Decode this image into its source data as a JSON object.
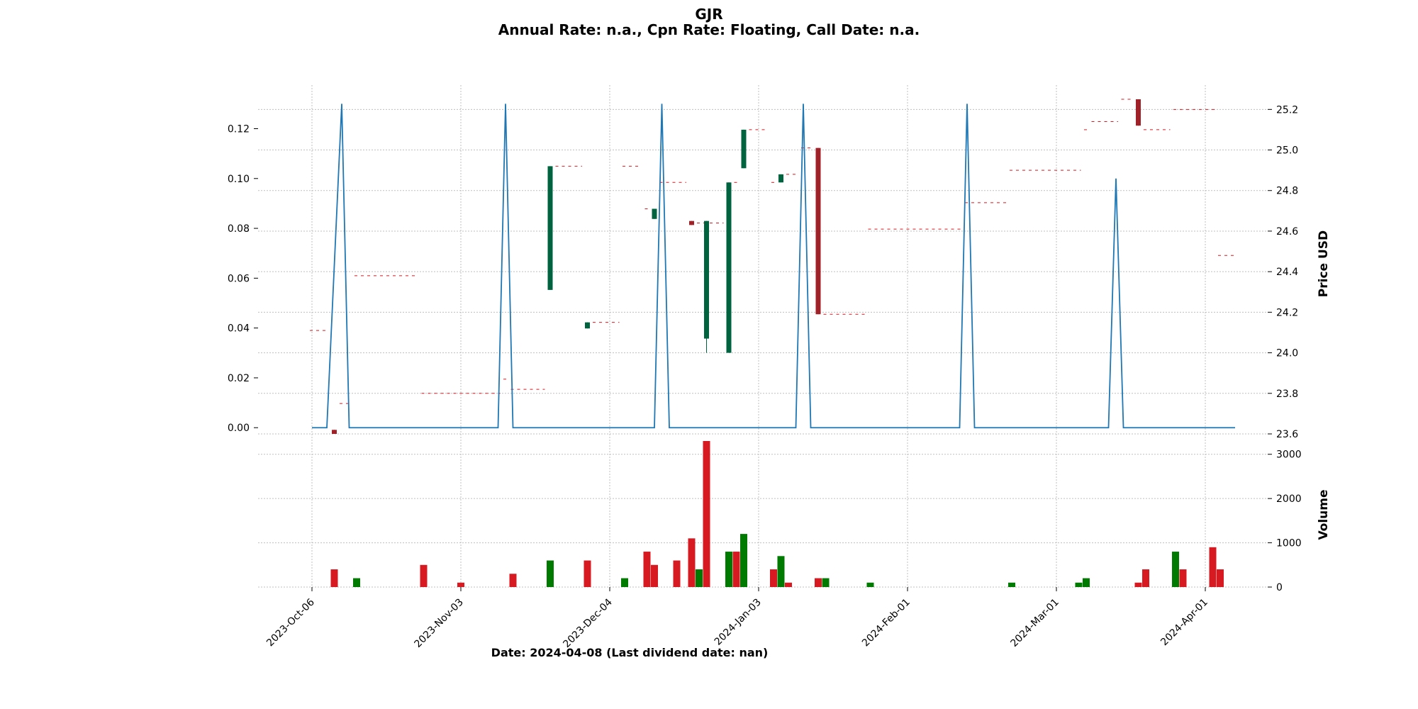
{
  "title": {
    "line1": "GJR",
    "line2": "Annual Rate: n.a., Cpn Rate: Floating, Call Date: n.a."
  },
  "colors": {
    "up": "#006340",
    "down": "#A02128",
    "vol_up": "#007a00",
    "vol_down": "#d71921",
    "line": "#1f77b4",
    "grid": "#bfbfbf",
    "dash": "#d71921"
  },
  "chart_data": {
    "type": "candlestick",
    "xlabel": "Date: 2024-04-08   (Last dividend date: nan)",
    "x_tick_labels": [
      "2023-Oct-06",
      "2023-Nov-03",
      "2023-Dec-04",
      "2024-Jan-03",
      "2024-Feb-01",
      "2024-Mar-01",
      "2024-Apr-01"
    ],
    "x_tick_index": [
      0,
      20,
      40,
      60,
      80,
      100,
      120
    ],
    "n_bars": 126,
    "left_axis": {
      "ylim": [
        -0.0025,
        0.1375
      ],
      "ticks": [
        0.0,
        0.02,
        0.04,
        0.06,
        0.08,
        0.1,
        0.12
      ],
      "tick_labels": [
        "0.00",
        "0.02",
        "0.04",
        "0.06",
        "0.08",
        "0.10",
        "0.12"
      ]
    },
    "price_axis": {
      "ylabel": "Price USD",
      "ylim": [
        23.6,
        25.32
      ],
      "ticks": [
        23.6,
        23.8,
        24.0,
        24.2,
        24.4,
        24.6,
        24.8,
        25.0,
        25.2
      ],
      "tick_labels": [
        "23.6",
        "23.8",
        "24.0",
        "24.2",
        "24.4",
        "24.6",
        "24.8",
        "25.0",
        "25.2"
      ]
    },
    "volume_axis": {
      "ylabel": "Volume",
      "ylim": [
        0,
        3300
      ],
      "ticks": [
        0,
        1000,
        2000,
        3000
      ],
      "tick_labels": [
        "0",
        "1000",
        "2000",
        "3000"
      ]
    },
    "line_series": [
      [
        0,
        0
      ],
      [
        2,
        0
      ],
      [
        4,
        0.13
      ],
      [
        5,
        0
      ],
      [
        7,
        0
      ],
      [
        25,
        0
      ],
      [
        26,
        0.13
      ],
      [
        27,
        0
      ],
      [
        29,
        0
      ],
      [
        46,
        0
      ],
      [
        47,
        0.13
      ],
      [
        48,
        0
      ],
      [
        50,
        0
      ],
      [
        65,
        0
      ],
      [
        66,
        0.13
      ],
      [
        67,
        0
      ],
      [
        69,
        0
      ],
      [
        87,
        0
      ],
      [
        88,
        0.13
      ],
      [
        89,
        0
      ],
      [
        91,
        0
      ],
      [
        107,
        0
      ],
      [
        108,
        0.1
      ],
      [
        109,
        0
      ],
      [
        111,
        0
      ],
      [
        124,
        0
      ]
    ],
    "candles": [
      {
        "i": 3,
        "o": 23.62,
        "h": 23.62,
        "l": 23.6,
        "c": 23.6
      },
      {
        "i": 32,
        "o": 24.31,
        "h": 24.92,
        "l": 24.31,
        "c": 24.92
      },
      {
        "i": 37,
        "o": 24.12,
        "h": 24.15,
        "l": 24.12,
        "c": 24.15
      },
      {
        "i": 46,
        "o": 24.66,
        "h": 24.71,
        "l": 24.66,
        "c": 24.71
      },
      {
        "i": 51,
        "o": 24.65,
        "h": 24.65,
        "l": 24.63,
        "c": 24.63
      },
      {
        "i": 53,
        "o": 24.07,
        "h": 24.65,
        "l": 24.0,
        "c": 24.65
      },
      {
        "i": 56,
        "o": 24.0,
        "h": 24.84,
        "l": 24.0,
        "c": 24.84
      },
      {
        "i": 58,
        "o": 24.91,
        "h": 25.1,
        "l": 24.91,
        "c": 25.1
      },
      {
        "i": 63,
        "o": 24.84,
        "h": 24.88,
        "l": 24.84,
        "c": 24.88
      },
      {
        "i": 68,
        "o": 25.01,
        "h": 25.01,
        "l": 24.19,
        "c": 24.19
      },
      {
        "i": 111,
        "o": 25.25,
        "h": 25.25,
        "l": 25.12,
        "c": 25.12
      }
    ],
    "dash_segments": [
      {
        "from": 0,
        "to": 2,
        "price": 24.11
      },
      {
        "from": 4,
        "to": 5,
        "price": 23.75
      },
      {
        "from": 6,
        "to": 14,
        "price": 24.38
      },
      {
        "from": 15,
        "to": 25,
        "price": 23.8
      },
      {
        "from": 26,
        "to": 26,
        "price": 23.87
      },
      {
        "from": 27,
        "to": 31,
        "price": 23.82
      },
      {
        "from": 33,
        "to": 36,
        "price": 24.92
      },
      {
        "from": 38,
        "to": 41,
        "price": 24.15
      },
      {
        "from": 42,
        "to": 44,
        "price": 24.92
      },
      {
        "from": 45,
        "to": 45,
        "price": 24.71
      },
      {
        "from": 47,
        "to": 50,
        "price": 24.84
      },
      {
        "from": 52,
        "to": 55,
        "price": 24.64
      },
      {
        "from": 57,
        "to": 57,
        "price": 24.84
      },
      {
        "from": 59,
        "to": 61,
        "price": 25.1
      },
      {
        "from": 62,
        "to": 62,
        "price": 24.84
      },
      {
        "from": 64,
        "to": 65,
        "price": 24.88
      },
      {
        "from": 66,
        "to": 67,
        "price": 25.01
      },
      {
        "from": 69,
        "to": 74,
        "price": 24.19
      },
      {
        "from": 75,
        "to": 87,
        "price": 24.61
      },
      {
        "from": 88,
        "to": 93,
        "price": 24.74
      },
      {
        "from": 94,
        "to": 103,
        "price": 24.9
      },
      {
        "from": 104,
        "to": 104,
        "price": 25.1
      },
      {
        "from": 105,
        "to": 108,
        "price": 25.14
      },
      {
        "from": 109,
        "to": 110,
        "price": 25.25
      },
      {
        "from": 112,
        "to": 115,
        "price": 25.1
      },
      {
        "from": 116,
        "to": 121,
        "price": 25.2
      },
      {
        "from": 122,
        "to": 124,
        "price": 24.48
      }
    ],
    "volumes": [
      {
        "i": 3,
        "v": 400,
        "up": false
      },
      {
        "i": 6,
        "v": 200,
        "up": true
      },
      {
        "i": 15,
        "v": 500,
        "up": false
      },
      {
        "i": 20,
        "v": 100,
        "up": false
      },
      {
        "i": 27,
        "v": 300,
        "up": false
      },
      {
        "i": 32,
        "v": 600,
        "up": true
      },
      {
        "i": 37,
        "v": 600,
        "up": false
      },
      {
        "i": 42,
        "v": 200,
        "up": true
      },
      {
        "i": 45,
        "v": 800,
        "up": false
      },
      {
        "i": 46,
        "v": 500,
        "up": false
      },
      {
        "i": 49,
        "v": 600,
        "up": false
      },
      {
        "i": 51,
        "v": 1100,
        "up": false
      },
      {
        "i": 52,
        "v": 400,
        "up": true
      },
      {
        "i": 53,
        "v": 3300,
        "up": false
      },
      {
        "i": 56,
        "v": 800,
        "up": true
      },
      {
        "i": 57,
        "v": 800,
        "up": false
      },
      {
        "i": 58,
        "v": 1200,
        "up": true
      },
      {
        "i": 62,
        "v": 400,
        "up": false
      },
      {
        "i": 63,
        "v": 700,
        "up": true
      },
      {
        "i": 64,
        "v": 100,
        "up": false
      },
      {
        "i": 68,
        "v": 200,
        "up": false
      },
      {
        "i": 69,
        "v": 200,
        "up": true
      },
      {
        "i": 75,
        "v": 100,
        "up": true
      },
      {
        "i": 94,
        "v": 100,
        "up": true
      },
      {
        "i": 103,
        "v": 100,
        "up": true
      },
      {
        "i": 104,
        "v": 200,
        "up": true
      },
      {
        "i": 111,
        "v": 100,
        "up": false
      },
      {
        "i": 112,
        "v": 400,
        "up": false
      },
      {
        "i": 116,
        "v": 800,
        "up": true
      },
      {
        "i": 117,
        "v": 400,
        "up": false
      },
      {
        "i": 121,
        "v": 900,
        "up": false
      },
      {
        "i": 122,
        "v": 400,
        "up": false
      }
    ]
  }
}
